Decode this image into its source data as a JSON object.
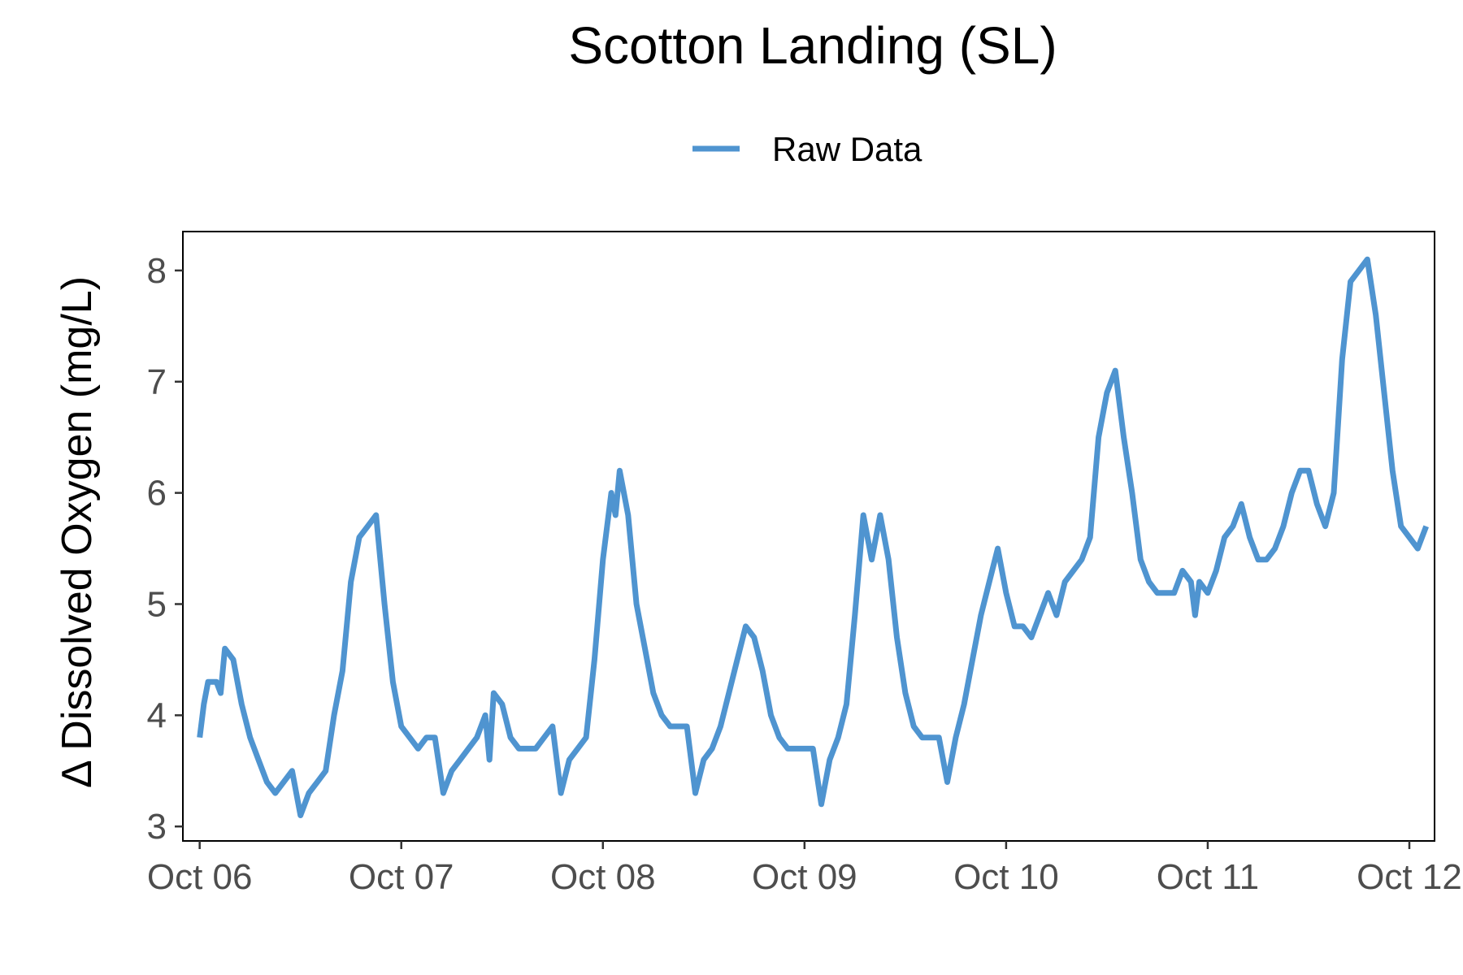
{
  "chart_data": {
    "type": "line",
    "title": "Scotton Landing (SL)",
    "xlabel": "",
    "ylabel": "Δ Dissolved Oxygen (mg/L)",
    "x_range": [
      "2023-10-05T22:00",
      "2023-10-12T03:00"
    ],
    "ylim": [
      2.87,
      8.35
    ],
    "yticks": [
      3,
      4,
      5,
      6,
      7,
      8
    ],
    "xticks": [
      "Oct 06",
      "Oct 07",
      "Oct 08",
      "Oct 09",
      "Oct 10",
      "Oct 11",
      "Oct 12"
    ],
    "grid": false,
    "legend_position": "top",
    "series": [
      {
        "name": "Raw Data",
        "color": "#4f94d0",
        "points": [
          [
            "2023-10-06T00:00",
            3.8
          ],
          [
            "2023-10-06T00:30",
            4.1
          ],
          [
            "2023-10-06T01:00",
            4.3
          ],
          [
            "2023-10-06T02:00",
            4.3
          ],
          [
            "2023-10-06T02:30",
            4.2
          ],
          [
            "2023-10-06T03:00",
            4.6
          ],
          [
            "2023-10-06T04:00",
            4.5
          ],
          [
            "2023-10-06T05:00",
            4.1
          ],
          [
            "2023-10-06T06:00",
            3.8
          ],
          [
            "2023-10-06T07:00",
            3.6
          ],
          [
            "2023-10-06T08:00",
            3.4
          ],
          [
            "2023-10-06T09:00",
            3.3
          ],
          [
            "2023-10-06T10:00",
            3.4
          ],
          [
            "2023-10-06T11:00",
            3.5
          ],
          [
            "2023-10-06T12:00",
            3.1
          ],
          [
            "2023-10-06T13:00",
            3.3
          ],
          [
            "2023-10-06T14:00",
            3.4
          ],
          [
            "2023-10-06T15:00",
            3.5
          ],
          [
            "2023-10-06T16:00",
            4.0
          ],
          [
            "2023-10-06T17:00",
            4.4
          ],
          [
            "2023-10-06T18:00",
            5.2
          ],
          [
            "2023-10-06T19:00",
            5.6
          ],
          [
            "2023-10-06T20:00",
            5.7
          ],
          [
            "2023-10-06T21:00",
            5.8
          ],
          [
            "2023-10-06T22:00",
            5.0
          ],
          [
            "2023-10-06T23:00",
            4.3
          ],
          [
            "2023-10-07T00:00",
            3.9
          ],
          [
            "2023-10-07T01:00",
            3.8
          ],
          [
            "2023-10-07T02:00",
            3.7
          ],
          [
            "2023-10-07T03:00",
            3.8
          ],
          [
            "2023-10-07T04:00",
            3.8
          ],
          [
            "2023-10-07T05:00",
            3.3
          ],
          [
            "2023-10-07T06:00",
            3.5
          ],
          [
            "2023-10-07T07:00",
            3.6
          ],
          [
            "2023-10-07T08:00",
            3.7
          ],
          [
            "2023-10-07T09:00",
            3.8
          ],
          [
            "2023-10-07T10:00",
            4.0
          ],
          [
            "2023-10-07T10:30",
            3.6
          ],
          [
            "2023-10-07T11:00",
            4.2
          ],
          [
            "2023-10-07T12:00",
            4.1
          ],
          [
            "2023-10-07T13:00",
            3.8
          ],
          [
            "2023-10-07T14:00",
            3.7
          ],
          [
            "2023-10-07T15:00",
            3.7
          ],
          [
            "2023-10-07T16:00",
            3.7
          ],
          [
            "2023-10-07T17:00",
            3.8
          ],
          [
            "2023-10-07T18:00",
            3.9
          ],
          [
            "2023-10-07T19:00",
            3.3
          ],
          [
            "2023-10-07T20:00",
            3.6
          ],
          [
            "2023-10-07T21:00",
            3.7
          ],
          [
            "2023-10-07T22:00",
            3.8
          ],
          [
            "2023-10-07T23:00",
            4.5
          ],
          [
            "2023-10-08T00:00",
            5.4
          ],
          [
            "2023-10-08T01:00",
            6.0
          ],
          [
            "2023-10-08T01:30",
            5.8
          ],
          [
            "2023-10-08T02:00",
            6.2
          ],
          [
            "2023-10-08T03:00",
            5.8
          ],
          [
            "2023-10-08T04:00",
            5.0
          ],
          [
            "2023-10-08T05:00",
            4.6
          ],
          [
            "2023-10-08T06:00",
            4.2
          ],
          [
            "2023-10-08T07:00",
            4.0
          ],
          [
            "2023-10-08T08:00",
            3.9
          ],
          [
            "2023-10-08T09:00",
            3.9
          ],
          [
            "2023-10-08T10:00",
            3.9
          ],
          [
            "2023-10-08T11:00",
            3.3
          ],
          [
            "2023-10-08T12:00",
            3.6
          ],
          [
            "2023-10-08T13:00",
            3.7
          ],
          [
            "2023-10-08T14:00",
            3.9
          ],
          [
            "2023-10-08T15:00",
            4.2
          ],
          [
            "2023-10-08T16:00",
            4.5
          ],
          [
            "2023-10-08T17:00",
            4.8
          ],
          [
            "2023-10-08T18:00",
            4.7
          ],
          [
            "2023-10-08T19:00",
            4.4
          ],
          [
            "2023-10-08T20:00",
            4.0
          ],
          [
            "2023-10-08T21:00",
            3.8
          ],
          [
            "2023-10-08T22:00",
            3.7
          ],
          [
            "2023-10-08T23:00",
            3.7
          ],
          [
            "2023-10-09T00:00",
            3.7
          ],
          [
            "2023-10-09T01:00",
            3.7
          ],
          [
            "2023-10-09T02:00",
            3.2
          ],
          [
            "2023-10-09T03:00",
            3.6
          ],
          [
            "2023-10-09T04:00",
            3.8
          ],
          [
            "2023-10-09T05:00",
            4.1
          ],
          [
            "2023-10-09T06:00",
            4.9
          ],
          [
            "2023-10-09T07:00",
            5.8
          ],
          [
            "2023-10-09T08:00",
            5.4
          ],
          [
            "2023-10-09T09:00",
            5.8
          ],
          [
            "2023-10-09T10:00",
            5.4
          ],
          [
            "2023-10-09T11:00",
            4.7
          ],
          [
            "2023-10-09T12:00",
            4.2
          ],
          [
            "2023-10-09T13:00",
            3.9
          ],
          [
            "2023-10-09T14:00",
            3.8
          ],
          [
            "2023-10-09T15:00",
            3.8
          ],
          [
            "2023-10-09T16:00",
            3.8
          ],
          [
            "2023-10-09T17:00",
            3.4
          ],
          [
            "2023-10-09T18:00",
            3.8
          ],
          [
            "2023-10-09T19:00",
            4.1
          ],
          [
            "2023-10-09T20:00",
            4.5
          ],
          [
            "2023-10-09T21:00",
            4.9
          ],
          [
            "2023-10-09T22:00",
            5.2
          ],
          [
            "2023-10-09T23:00",
            5.5
          ],
          [
            "2023-10-10T00:00",
            5.1
          ],
          [
            "2023-10-10T01:00",
            4.8
          ],
          [
            "2023-10-10T02:00",
            4.8
          ],
          [
            "2023-10-10T03:00",
            4.7
          ],
          [
            "2023-10-10T04:00",
            4.9
          ],
          [
            "2023-10-10T05:00",
            5.1
          ],
          [
            "2023-10-10T06:00",
            4.9
          ],
          [
            "2023-10-10T07:00",
            5.2
          ],
          [
            "2023-10-10T08:00",
            5.3
          ],
          [
            "2023-10-10T09:00",
            5.4
          ],
          [
            "2023-10-10T10:00",
            5.6
          ],
          [
            "2023-10-10T11:00",
            6.5
          ],
          [
            "2023-10-10T12:00",
            6.9
          ],
          [
            "2023-10-10T13:00",
            7.1
          ],
          [
            "2023-10-10T14:00",
            6.5
          ],
          [
            "2023-10-10T15:00",
            6.0
          ],
          [
            "2023-10-10T16:00",
            5.4
          ],
          [
            "2023-10-10T17:00",
            5.2
          ],
          [
            "2023-10-10T18:00",
            5.1
          ],
          [
            "2023-10-10T19:00",
            5.1
          ],
          [
            "2023-10-10T20:00",
            5.1
          ],
          [
            "2023-10-10T21:00",
            5.3
          ],
          [
            "2023-10-10T22:00",
            5.2
          ],
          [
            "2023-10-10T22:30",
            4.9
          ],
          [
            "2023-10-10T23:00",
            5.2
          ],
          [
            "2023-10-11T00:00",
            5.1
          ],
          [
            "2023-10-11T01:00",
            5.3
          ],
          [
            "2023-10-11T02:00",
            5.6
          ],
          [
            "2023-10-11T03:00",
            5.7
          ],
          [
            "2023-10-11T04:00",
            5.9
          ],
          [
            "2023-10-11T05:00",
            5.6
          ],
          [
            "2023-10-11T06:00",
            5.4
          ],
          [
            "2023-10-11T07:00",
            5.4
          ],
          [
            "2023-10-11T08:00",
            5.5
          ],
          [
            "2023-10-11T09:00",
            5.7
          ],
          [
            "2023-10-11T10:00",
            6.0
          ],
          [
            "2023-10-11T11:00",
            6.2
          ],
          [
            "2023-10-11T12:00",
            6.2
          ],
          [
            "2023-10-11T13:00",
            5.9
          ],
          [
            "2023-10-11T14:00",
            5.7
          ],
          [
            "2023-10-11T15:00",
            6.0
          ],
          [
            "2023-10-11T16:00",
            7.2
          ],
          [
            "2023-10-11T17:00",
            7.9
          ],
          [
            "2023-10-11T18:00",
            8.0
          ],
          [
            "2023-10-11T19:00",
            8.1
          ],
          [
            "2023-10-11T20:00",
            7.6
          ],
          [
            "2023-10-11T21:00",
            6.9
          ],
          [
            "2023-10-11T22:00",
            6.2
          ],
          [
            "2023-10-11T23:00",
            5.7
          ],
          [
            "2023-10-12T00:00",
            5.6
          ],
          [
            "2023-10-12T01:00",
            5.5
          ],
          [
            "2023-10-12T02:00",
            5.7
          ]
        ]
      }
    ]
  }
}
